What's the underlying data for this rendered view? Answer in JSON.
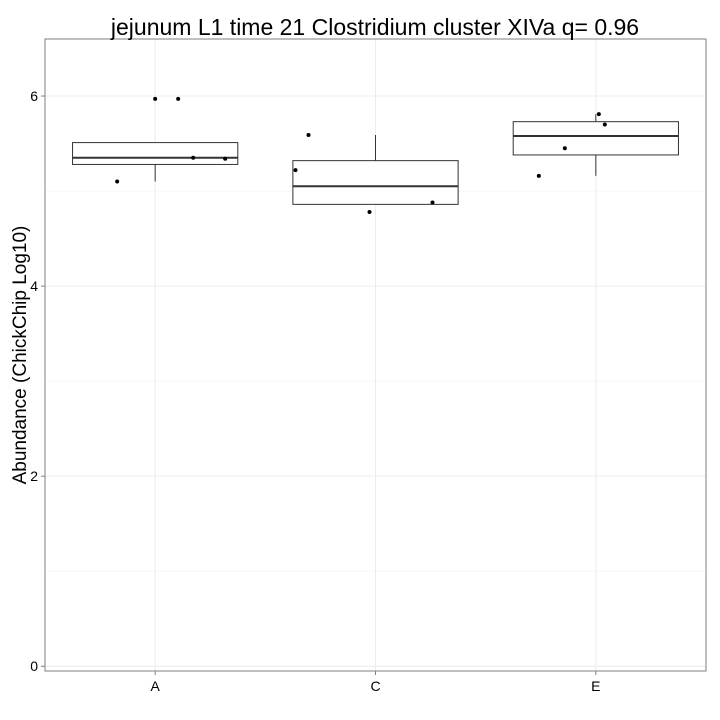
{
  "chart_data": {
    "type": "box",
    "title": "jejunum L1 time 21 Clostridium cluster XIVa q= 0.96",
    "xlabel": "",
    "ylabel": "Abundance (ChickChip Log10)",
    "ylim": [
      -0.05,
      6.6
    ],
    "yticks": [
      0,
      2,
      4,
      6
    ],
    "grid": true,
    "categories": [
      "A",
      "C",
      "E"
    ],
    "boxes": [
      {
        "category": "A",
        "whisker_low": 5.1,
        "q1": 5.28,
        "median": 5.35,
        "q3": 5.51,
        "whisker_high": 5.51
      },
      {
        "category": "C",
        "whisker_low": 4.86,
        "q1": 4.86,
        "median": 5.05,
        "q3": 5.32,
        "whisker_high": 5.59
      },
      {
        "category": "E",
        "whisker_low": 5.16,
        "q1": 5.38,
        "median": 5.58,
        "q3": 5.73,
        "whisker_high": 5.81
      }
    ],
    "points": [
      {
        "category": "A",
        "values": [
          5.97,
          5.97,
          5.35,
          5.34,
          5.1
        ]
      },
      {
        "category": "C",
        "values": [
          5.59,
          5.22,
          4.78,
          4.88
        ]
      },
      {
        "category": "E",
        "values": [
          5.81,
          5.7,
          5.45,
          5.16
        ]
      }
    ]
  }
}
